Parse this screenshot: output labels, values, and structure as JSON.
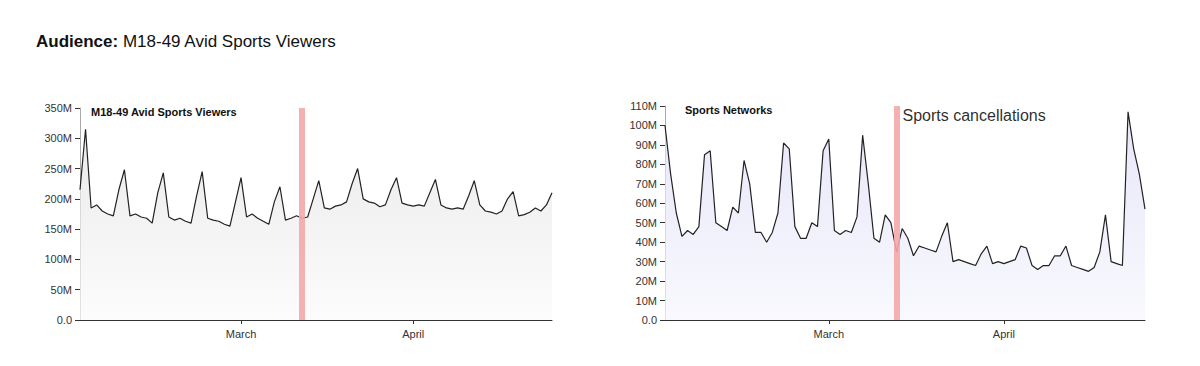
{
  "header": {
    "label": "Audience:",
    "text": "M18-49 Avid Sports Viewers"
  },
  "chart_data": [
    {
      "type": "line",
      "title": "M18-49 Avid Sports Viewers",
      "color": "#222222",
      "grid": false,
      "categories": [
        null,
        null,
        null,
        null,
        null,
        null,
        null,
        null,
        null,
        null,
        null,
        null,
        null,
        null,
        null,
        null,
        null,
        null,
        null,
        null,
        null,
        null,
        null,
        null,
        null,
        null,
        null,
        null,
        null,
        "March",
        null,
        null,
        null,
        null,
        null,
        null,
        null,
        null,
        null,
        null,
        null,
        null,
        null,
        null,
        null,
        null,
        null,
        null,
        null,
        null,
        null,
        null,
        null,
        null,
        null,
        null,
        null,
        null,
        null,
        null,
        "April",
        null,
        null,
        null,
        null,
        null,
        null,
        null,
        null,
        null,
        null,
        null,
        null,
        null,
        null,
        null,
        null,
        null,
        null,
        null,
        null,
        null,
        null,
        null,
        null,
        null
      ],
      "values": [
        215,
        315,
        185,
        190,
        180,
        175,
        172,
        215,
        248,
        172,
        175,
        170,
        168,
        160,
        210,
        243,
        170,
        165,
        168,
        163,
        160,
        205,
        245,
        168,
        165,
        163,
        158,
        155,
        195,
        235,
        170,
        175,
        168,
        163,
        158,
        195,
        220,
        165,
        168,
        172,
        168,
        170,
        200,
        230,
        185,
        183,
        188,
        190,
        195,
        225,
        250,
        200,
        195,
        193,
        187,
        190,
        215,
        235,
        193,
        190,
        188,
        190,
        188,
        210,
        232,
        190,
        185,
        183,
        185,
        183,
        205,
        230,
        190,
        180,
        178,
        175,
        180,
        200,
        212,
        172,
        174,
        178,
        185,
        180,
        190,
        210
      ],
      "ylim": [
        0,
        350
      ],
      "yticks": [
        {
          "value": 0,
          "label": "0.0"
        },
        {
          "value": 50,
          "label": "50M"
        },
        {
          "value": 100,
          "label": "100M"
        },
        {
          "value": 150,
          "label": "150M"
        },
        {
          "value": 200,
          "label": "200M"
        },
        {
          "value": 250,
          "label": "250M"
        },
        {
          "value": 300,
          "label": "300M"
        },
        {
          "value": 350,
          "label": "350M"
        }
      ],
      "annotations": [
        {
          "x": 40
        }
      ]
    },
    {
      "type": "line",
      "title": "Sports Networks",
      "color": "#222222",
      "grid": false,
      "categories": [
        null,
        null,
        null,
        null,
        null,
        null,
        null,
        null,
        null,
        null,
        null,
        null,
        null,
        null,
        null,
        null,
        null,
        null,
        null,
        null,
        null,
        null,
        null,
        null,
        null,
        null,
        null,
        null,
        null,
        "March",
        null,
        null,
        null,
        null,
        null,
        null,
        null,
        null,
        null,
        null,
        null,
        null,
        null,
        null,
        null,
        null,
        null,
        null,
        null,
        null,
        null,
        null,
        null,
        null,
        null,
        null,
        null,
        null,
        null,
        null,
        "April",
        null,
        null,
        null,
        null,
        null,
        null,
        null,
        null,
        null,
        null,
        null,
        null,
        null,
        null,
        null,
        null,
        null,
        null,
        null,
        null,
        null,
        null,
        null,
        null,
        null
      ],
      "values": [
        100,
        75,
        55,
        43,
        46,
        44,
        48,
        85,
        87,
        50,
        48,
        46,
        58,
        55,
        82,
        70,
        45,
        45,
        40,
        45,
        55,
        91,
        88,
        48,
        42,
        42,
        50,
        48,
        87,
        93,
        46,
        44,
        46,
        45,
        53,
        95,
        70,
        42,
        40,
        54,
        50,
        35,
        47,
        42,
        33,
        38,
        37,
        36,
        35,
        43,
        50,
        30,
        31,
        30,
        29,
        28,
        34,
        38,
        29,
        30,
        29,
        30,
        31,
        38,
        37,
        28,
        26,
        28,
        28,
        33,
        33,
        38,
        28,
        27,
        26,
        25,
        27,
        35,
        54,
        30,
        29,
        28,
        107,
        88,
        75,
        57
      ],
      "ylim": [
        0,
        110
      ],
      "yticks": [
        {
          "value": 0,
          "label": "0.0"
        },
        {
          "value": 10,
          "label": "10M"
        },
        {
          "value": 20,
          "label": "20M"
        },
        {
          "value": 30,
          "label": "30M"
        },
        {
          "value": 40,
          "label": "40M"
        },
        {
          "value": 50,
          "label": "50M"
        },
        {
          "value": 60,
          "label": "60M"
        },
        {
          "value": 70,
          "label": "70M"
        },
        {
          "value": 80,
          "label": "80M"
        },
        {
          "value": 90,
          "label": "90M"
        },
        {
          "value": 100,
          "label": "100M"
        },
        {
          "value": 110,
          "label": "110M"
        }
      ],
      "annotations": [
        {
          "x": 41,
          "text": "Sports cancellations"
        }
      ]
    }
  ]
}
